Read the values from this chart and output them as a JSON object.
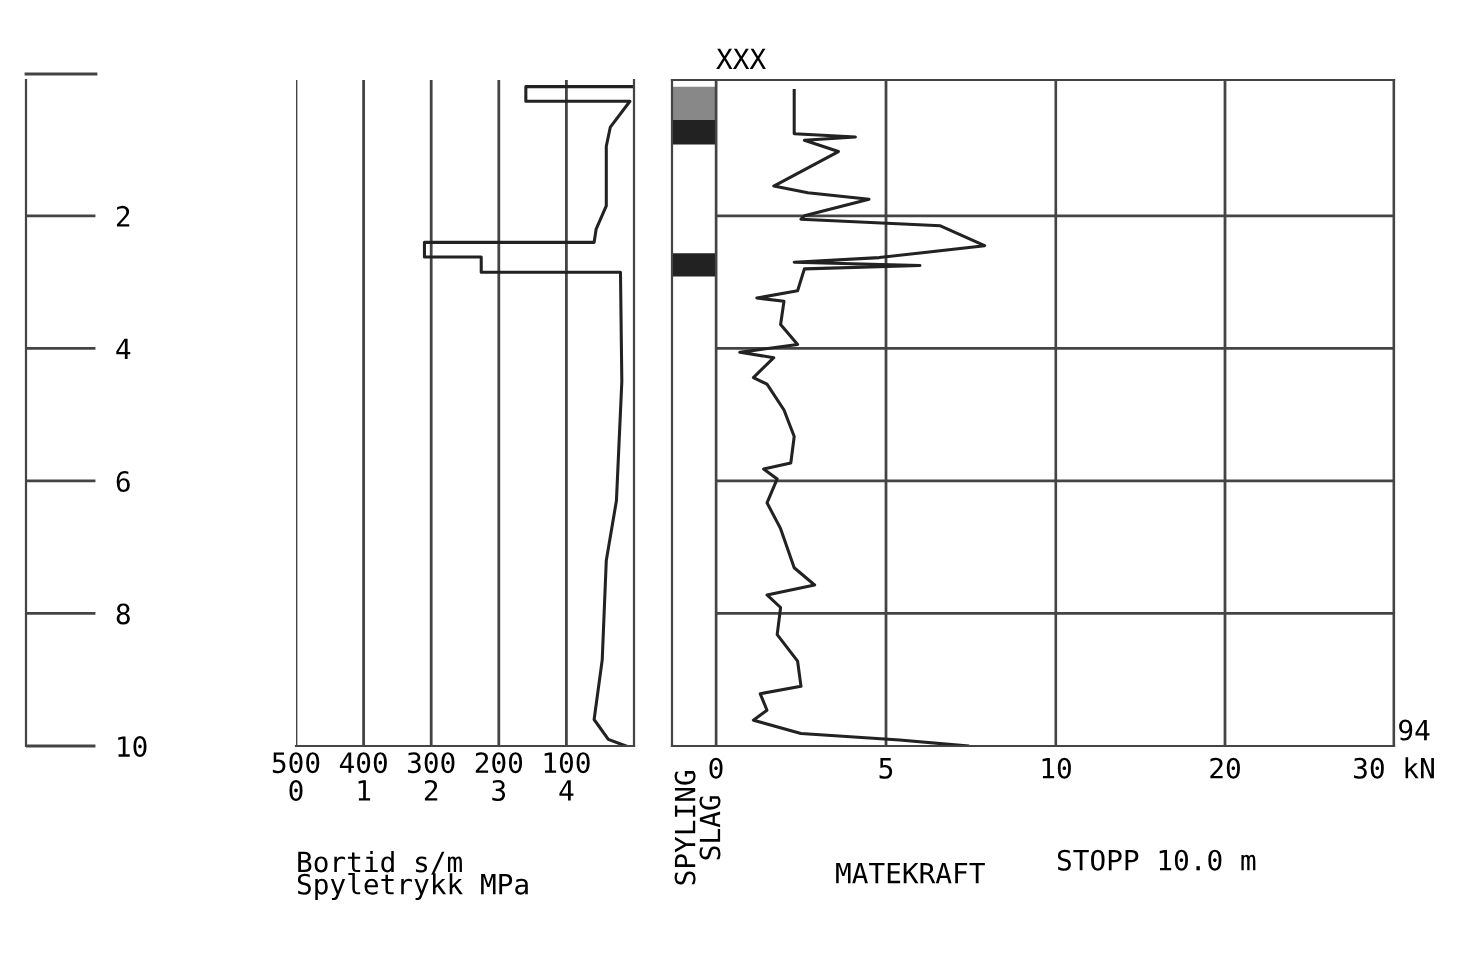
{
  "chart_data": [
    {
      "type": "line",
      "xlabel": "Bortid s/m",
      "x2label": "Spyletrykk MPa",
      "annotations": [
        "SPYLING\nSLAG"
      ],
      "xlim": [
        500,
        0
      ],
      "xticks": [
        500,
        400,
        300,
        200,
        100
      ],
      "x2lim": [
        0,
        5
      ],
      "x2ticks": [
        0,
        1,
        2,
        3,
        4
      ],
      "ylim": [
        10,
        -0.05
      ],
      "yticks": [
        2,
        4,
        6,
        8,
        10
      ],
      "grid": "x",
      "series": [
        {
          "color": "#222222",
          "x": [
            0,
            160,
            160,
            6,
            35,
            41,
            41,
            56,
            59,
            310,
            310,
            226,
            226,
            20,
            18,
            26,
            41,
            47,
            59,
            38,
            12
          ],
          "values": [
            0.05,
            0.05,
            0.27,
            0.27,
            0.66,
            0.95,
            1.85,
            2.2,
            2.4,
            2.4,
            2.62,
            2.62,
            2.85,
            2.85,
            4.5,
            6.3,
            7.2,
            8.7,
            9.6,
            9.9,
            10.0
          ]
        }
      ]
    },
    {
      "type": "line",
      "title": "XXX",
      "xlabel": "MATEKRAFT",
      "xlim": [
        0,
        10
      ],
      "xticks": [
        0,
        5,
        10
      ],
      "ylim": [
        10,
        -0.05
      ],
      "yticks": [
        2,
        4,
        6,
        8
      ],
      "tick_labels": "x",
      "grid": true,
      "series": [
        {
          "color": "#222222",
          "x": [
            2.3,
            2.3,
            4.1,
            2.6,
            3.6,
            1.7,
            2.7,
            4.5,
            2.6,
            2.5,
            6.6,
            7.9,
            4.8,
            2.3,
            6.0,
            2.6,
            2.4,
            1.2,
            2.0,
            1.9,
            2.4,
            0.7,
            1.7,
            1.1,
            1.5,
            2.0,
            2.3,
            2.2,
            1.4,
            1.8,
            1.5,
            1.9,
            2.3,
            2.9,
            1.5,
            1.9,
            1.8,
            2.4,
            2.5,
            1.3,
            1.5,
            1.1,
            2.5,
            5.4,
            7.4
          ],
          "values": [
            0.11,
            0.76,
            0.81,
            0.86,
            1.03,
            1.55,
            1.65,
            1.75,
            2.0,
            2.05,
            2.15,
            2.45,
            2.63,
            2.7,
            2.75,
            2.8,
            3.13,
            3.24,
            3.29,
            3.64,
            3.94,
            4.06,
            4.14,
            4.44,
            4.54,
            4.93,
            5.33,
            5.73,
            5.82,
            5.97,
            6.33,
            6.72,
            7.31,
            7.57,
            7.72,
            7.91,
            8.32,
            8.72,
            9.1,
            9.21,
            9.46,
            9.61,
            9.81,
            9.91,
            10.0
          ]
        }
      ]
    },
    {
      "type": "line",
      "annotations": [
        "STOPP 10.0 m",
        "94"
      ],
      "xlim": [
        10,
        30
      ],
      "xticks": [
        20,
        {
          "value": 30,
          "label": "30 kN"
        }
      ],
      "ylim": [
        10,
        -0.05
      ],
      "yticks": [
        2,
        4,
        6,
        8
      ],
      "tick_labels": "x",
      "grid": true
    }
  ]
}
